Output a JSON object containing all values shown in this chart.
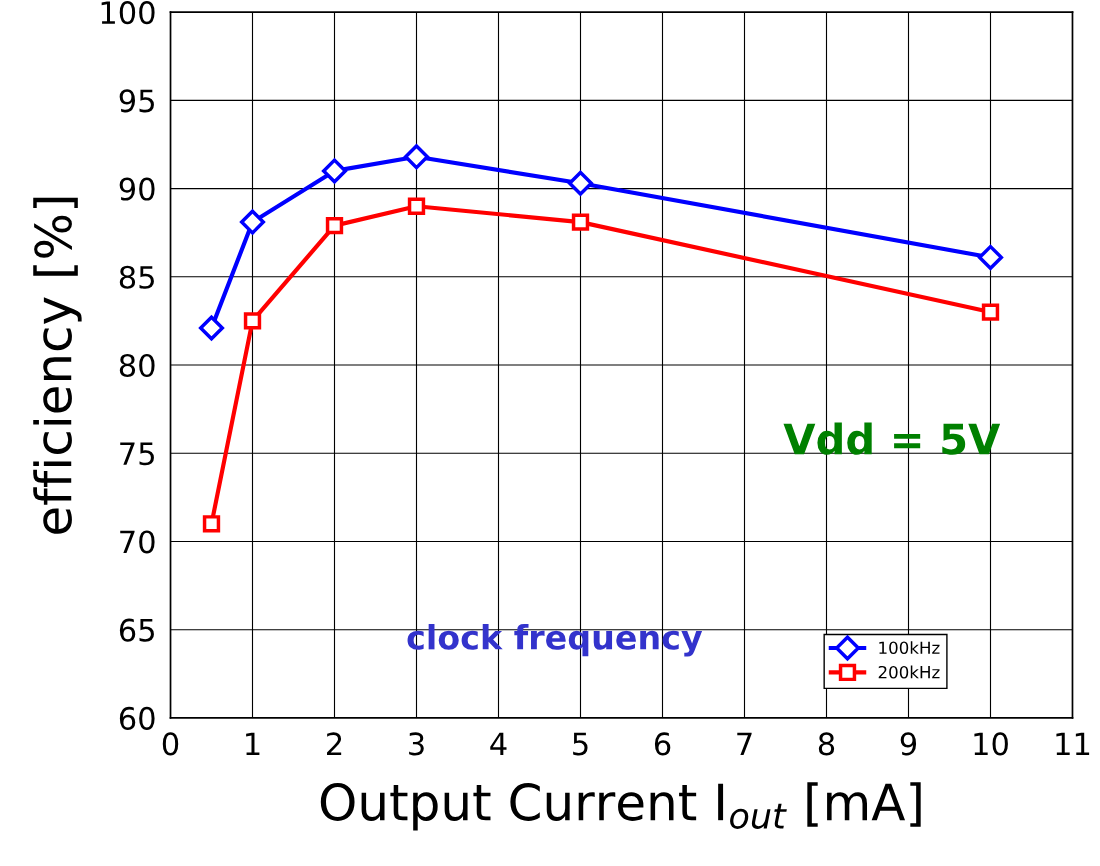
{
  "chart_data": {
    "type": "line",
    "xlabel": "Output Current I$_{out}$ [mA]",
    "ylabel": "efficiency [%]",
    "xlim": [
      0,
      11
    ],
    "xticks": [
      0,
      1,
      2,
      3,
      4,
      5,
      6,
      7,
      8,
      9,
      10,
      11
    ],
    "ylim": [
      60,
      100
    ],
    "yticks": [
      60,
      65,
      70,
      75,
      80,
      85,
      90,
      95,
      100
    ],
    "grid": true,
    "legend": "bottom right",
    "line_style": "solid",
    "annotations": [
      "Vdd = 5V",
      "clock frequency"
    ],
    "series": [
      {
        "name": "100kHz",
        "color": "#0000ff",
        "marker": "diamond",
        "x": [
          0.5,
          1,
          2,
          3,
          5,
          10
        ],
        "values": [
          82.1,
          88.1,
          91.0,
          91.8,
          90.3,
          86.1
        ]
      },
      {
        "name": "200kHz",
        "color": "#ff0000",
        "marker": "square",
        "x": [
          0.5,
          1,
          2,
          3,
          5,
          10
        ],
        "values": [
          71.0,
          82.5,
          87.9,
          89.0,
          88.1,
          83.0
        ]
      }
    ]
  }
}
